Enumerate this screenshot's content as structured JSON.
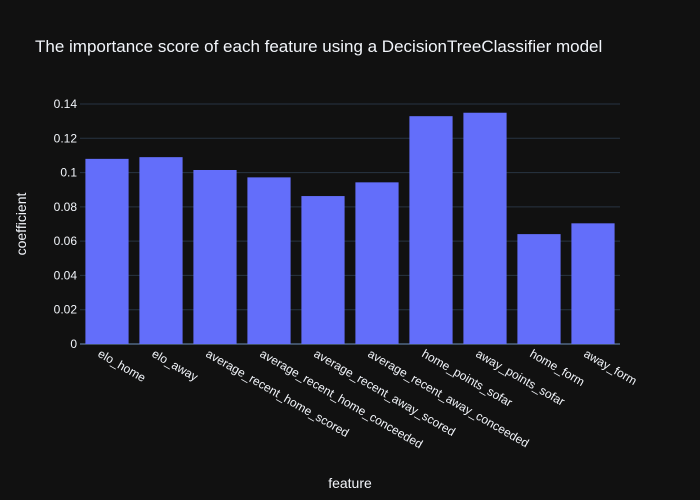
{
  "chart_data": {
    "type": "bar",
    "title": "The importance score of each feature using a DecisionTreeClassifier model",
    "xlabel": "feature",
    "ylabel": "coefficient",
    "categories": [
      "elo_home",
      "elo_away",
      "average_recent_home_scored",
      "average_recent_home_conceeded",
      "average_recent_away_scored",
      "average_recent_away_conceeded",
      "home_points_sofar",
      "away_points_sofar",
      "home_form",
      "away_form"
    ],
    "values": [
      0.108,
      0.109,
      0.1015,
      0.0972,
      0.0863,
      0.0943,
      0.1329,
      0.1349,
      0.0641,
      0.0704
    ],
    "ylim": [
      0,
      0.14
    ],
    "yticks": [
      0,
      0.02,
      0.04,
      0.06,
      0.08,
      0.1,
      0.12,
      0.14
    ],
    "ytick_labels": [
      "0",
      "0.02",
      "0.04",
      "0.06",
      "0.08",
      "0.1",
      "0.12",
      "0.14"
    ],
    "grid": true,
    "bar_color": "#636efa",
    "background_color": "#111111",
    "grid_color": "#283442",
    "text_color": "#f2f5fa"
  }
}
